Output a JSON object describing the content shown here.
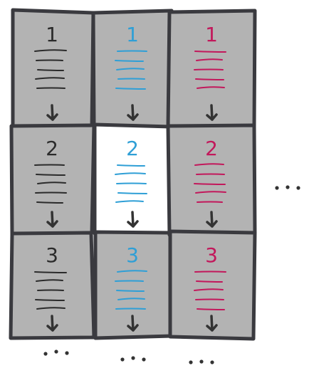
{
  "grid": {
    "columns": [
      {
        "name": "column-black",
        "ink": "#2b2b2b",
        "cells": [
          {
            "label": "1",
            "highlighted": false
          },
          {
            "label": "2",
            "highlighted": false
          },
          {
            "label": "3",
            "highlighted": false
          }
        ]
      },
      {
        "name": "column-blue",
        "ink": "#2f9fd6",
        "cells": [
          {
            "label": "1",
            "highlighted": false
          },
          {
            "label": "2",
            "highlighted": true
          },
          {
            "label": "3",
            "highlighted": false
          }
        ]
      },
      {
        "name": "column-magenta",
        "ink": "#c2185b",
        "cells": [
          {
            "label": "1",
            "highlighted": false
          },
          {
            "label": "2",
            "highlighted": false
          },
          {
            "label": "3",
            "highlighted": false
          }
        ]
      }
    ],
    "ellipsis_right": "...",
    "ellipsis_bottom": [
      "...",
      "...",
      "..."
    ]
  },
  "colors": {
    "cell_fill": "#b3b3b3",
    "cell_highlight_fill": "#ffffff",
    "border": "#3a3a3f",
    "arrow": "#333333",
    "dots": "#333333"
  }
}
